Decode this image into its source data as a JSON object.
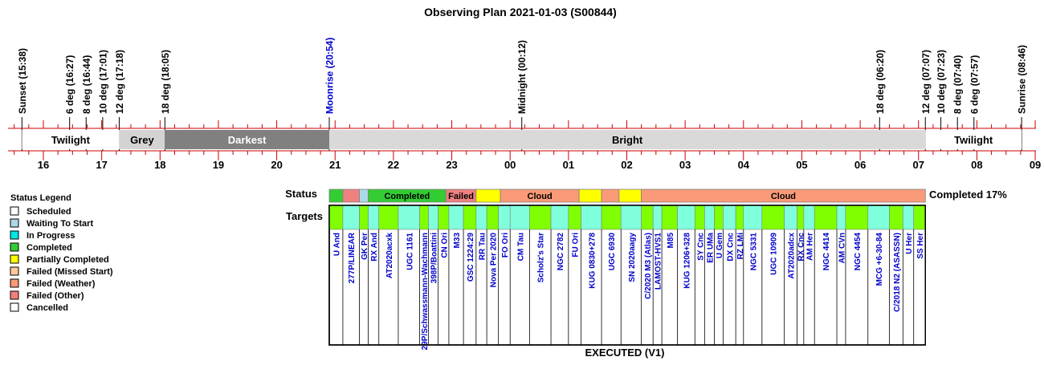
{
  "title": "Observing Plan 2021-01-03 (S00844)",
  "colors": {
    "twilight": "#ffffff",
    "grey": "#d3d3d3",
    "darkest": "#808080",
    "bright": "#d9d9d9",
    "axis": "#cc0000",
    "scheduled": "#ffffff",
    "waiting": "#add8e6",
    "in_progress": "#00e5e5",
    "completed": "#33cc33",
    "partial": "#ffff00",
    "failed_missed": "#ffcc99",
    "failed_weather": "#fa9a78",
    "failed_other": "#f08080",
    "cancelled": "#ffffff",
    "target_green": "#80ff00",
    "target_cyan": "#80ffdd",
    "label_blue": "#0000cc"
  },
  "legend": {
    "title": "Status Legend",
    "items": [
      {
        "label": "Scheduled",
        "color": "#ffffff"
      },
      {
        "label": "Waiting To Start",
        "color": "#add8e6"
      },
      {
        "label": "In Progress",
        "color": "#00e5e5"
      },
      {
        "label": "Completed",
        "color": "#33cc33"
      },
      {
        "label": "Partially Completed",
        "color": "#ffff00"
      },
      {
        "label": "Failed (Missed Start)",
        "color": "#ffcc99"
      },
      {
        "label": "Failed (Weather)",
        "color": "#fa9a78"
      },
      {
        "label": "Failed (Other)",
        "color": "#f08080"
      },
      {
        "label": "Cancelled",
        "color": "#ffffff"
      }
    ]
  },
  "chart_data": {
    "type": "timeline",
    "title": "Observing Plan 2021-01-03 (S00844)",
    "x_axis": {
      "unit": "hour (clock time)",
      "range": [
        15.3,
        33.0
      ],
      "tick_labels": [
        "16",
        "17",
        "18",
        "19",
        "20",
        "21",
        "22",
        "23",
        "00",
        "01",
        "02",
        "03",
        "04",
        "05",
        "06",
        "07",
        "08",
        "09"
      ],
      "tick_values": [
        16,
        17,
        18,
        19,
        20,
        21,
        22,
        23,
        24,
        25,
        26,
        27,
        28,
        29,
        30,
        31,
        32,
        33
      ]
    },
    "events": [
      {
        "label": "Sunset (15:38)",
        "t": 15.633,
        "color": "#000000"
      },
      {
        "label": "6 deg (16:27)",
        "t": 16.45,
        "color": "#000000"
      },
      {
        "label": "8 deg (16:44)",
        "t": 16.733,
        "color": "#000000"
      },
      {
        "label": "10 deg (17:01)",
        "t": 17.017,
        "color": "#000000"
      },
      {
        "label": "12 deg (17:18)",
        "t": 17.3,
        "color": "#000000"
      },
      {
        "label": "18 deg (18:05)",
        "t": 18.083,
        "color": "#000000"
      },
      {
        "label": "Moonrise (20:54)",
        "t": 20.9,
        "color": "#0000cc"
      },
      {
        "label": "Midnight (00:12)",
        "t": 24.2,
        "color": "#000000"
      },
      {
        "label": "18 deg (06:20)",
        "t": 30.333,
        "color": "#000000"
      },
      {
        "label": "12 deg (07:07)",
        "t": 31.117,
        "color": "#000000"
      },
      {
        "label": "10 deg (07:23)",
        "t": 31.383,
        "color": "#000000"
      },
      {
        "label": "8 deg (07:40)",
        "t": 31.667,
        "color": "#000000"
      },
      {
        "label": "6 deg (07:57)",
        "t": 31.95,
        "color": "#000000"
      },
      {
        "label": "Sunrise (08:46)",
        "t": 32.767,
        "color": "#000000"
      }
    ],
    "sky_periods": [
      {
        "label": "Twilight",
        "start": 15.633,
        "end": 17.3,
        "kind": "twilight"
      },
      {
        "label": "Grey",
        "start": 17.3,
        "end": 18.083,
        "kind": "grey"
      },
      {
        "label": "Darkest",
        "start": 18.083,
        "end": 20.9,
        "kind": "darkest"
      },
      {
        "label": "Bright",
        "start": 20.9,
        "end": 31.117,
        "kind": "bright"
      },
      {
        "label": "Twilight",
        "start": 31.117,
        "end": 32.767,
        "kind": "twilight"
      }
    ],
    "status_row": {
      "label": "Status",
      "segments": [
        {
          "start": 20.9,
          "end": 21.133,
          "status": "completed",
          "label": ""
        },
        {
          "start": 21.133,
          "end": 21.417,
          "status": "failed_other",
          "label": ""
        },
        {
          "start": 21.417,
          "end": 21.567,
          "status": "waiting",
          "label": ""
        },
        {
          "start": 21.567,
          "end": 22.9,
          "status": "completed",
          "label": "Completed"
        },
        {
          "start": 22.9,
          "end": 23.417,
          "status": "failed_other",
          "label": "Failed"
        },
        {
          "start": 23.417,
          "end": 23.833,
          "status": "partial",
          "label": ""
        },
        {
          "start": 23.833,
          "end": 25.183,
          "status": "failed_weather",
          "label": "Cloud"
        },
        {
          "start": 25.183,
          "end": 25.567,
          "status": "partial",
          "label": ""
        },
        {
          "start": 25.567,
          "end": 25.867,
          "status": "failed_weather",
          "label": ""
        },
        {
          "start": 25.867,
          "end": 26.25,
          "status": "partial",
          "label": ""
        },
        {
          "start": 26.25,
          "end": 31.117,
          "status": "failed_weather",
          "label": "Cloud"
        }
      ],
      "summary": "Completed 17%"
    },
    "targets_row": {
      "label": "Targets",
      "items": [
        {
          "name": "U And",
          "start": 20.9,
          "end": 21.133,
          "color": "#80ff00"
        },
        {
          "name": "277P/LINEAR",
          "start": 21.133,
          "end": 21.417,
          "color": "#80ffdd"
        },
        {
          "name": "GK Per",
          "start": 21.417,
          "end": 21.567,
          "color": "#80ff00"
        },
        {
          "name": "RX And",
          "start": 21.567,
          "end": 21.75,
          "color": "#80ffdd"
        },
        {
          "name": "AT2020acxk",
          "start": 21.75,
          "end": 22.083,
          "color": "#80ff00"
        },
        {
          "name": "UGC 1161",
          "start": 22.083,
          "end": 22.45,
          "color": "#80ffdd"
        },
        {
          "name": "29P/Schwassmann-Wachmann",
          "start": 22.45,
          "end": 22.6,
          "color": "#80ff00"
        },
        {
          "name": "398P/Boattini",
          "start": 22.6,
          "end": 22.767,
          "color": "#80ffdd"
        },
        {
          "name": "CN Ori",
          "start": 22.767,
          "end": 22.95,
          "color": "#80ff00"
        },
        {
          "name": "M33",
          "start": 22.95,
          "end": 23.2,
          "color": "#80ffdd"
        },
        {
          "name": "GSC 1224:29",
          "start": 23.2,
          "end": 23.417,
          "color": "#80ff00"
        },
        {
          "name": "RR Tau",
          "start": 23.417,
          "end": 23.6,
          "color": "#80ffdd"
        },
        {
          "name": "Nova Per 2020",
          "start": 23.6,
          "end": 23.8,
          "color": "#80ff00"
        },
        {
          "name": "FO Ori",
          "start": 23.8,
          "end": 24.0,
          "color": "#80ffdd"
        },
        {
          "name": "CM Tau",
          "start": 24.0,
          "end": 24.333,
          "color": "#80ffdd"
        },
        {
          "name": "Scholz's Star",
          "start": 24.333,
          "end": 24.7,
          "color": "#80ff00"
        },
        {
          "name": "NGC 2782",
          "start": 24.7,
          "end": 25.0,
          "color": "#80ffdd"
        },
        {
          "name": "FU Ori",
          "start": 25.0,
          "end": 25.217,
          "color": "#80ff00"
        },
        {
          "name": "KUG 0830+278",
          "start": 25.217,
          "end": 25.567,
          "color": "#80ffdd"
        },
        {
          "name": "UGC 6930",
          "start": 25.567,
          "end": 25.9,
          "color": "#80ff00"
        },
        {
          "name": "SN 2020aagy",
          "start": 25.9,
          "end": 26.25,
          "color": "#80ffdd"
        },
        {
          "name": "C/2020 M3 (Atlas)",
          "start": 26.25,
          "end": 26.45,
          "color": "#80ff00"
        },
        {
          "name": "LAMOST-HVS1",
          "start": 26.45,
          "end": 26.6,
          "color": "#80ffdd"
        },
        {
          "name": "M85",
          "start": 26.6,
          "end": 26.867,
          "color": "#80ff00"
        },
        {
          "name": "KUG 1206+328",
          "start": 26.867,
          "end": 27.167,
          "color": "#80ffdd"
        },
        {
          "name": "SY Cnc",
          "start": 27.167,
          "end": 27.333,
          "color": "#80ff00"
        },
        {
          "name": "ER UMa",
          "start": 27.333,
          "end": 27.5,
          "color": "#80ffdd"
        },
        {
          "name": "U Gem",
          "start": 27.5,
          "end": 27.65,
          "color": "#80ff00"
        },
        {
          "name": "DX Cnc",
          "start": 27.65,
          "end": 27.867,
          "color": "#80ffdd"
        },
        {
          "name": "RZ LMi",
          "start": 27.867,
          "end": 28.0,
          "color": "#80ff00"
        },
        {
          "name": "NGC 5331",
          "start": 28.0,
          "end": 28.317,
          "color": "#80ffdd"
        },
        {
          "name": "UGC 10909",
          "start": 28.317,
          "end": 28.7,
          "color": "#80ff00"
        },
        {
          "name": "AT2020adcx",
          "start": 28.7,
          "end": 28.917,
          "color": "#80ffdd"
        },
        {
          "name": "RX Cnc",
          "start": 28.917,
          "end": 29.033,
          "color": "#80ff00"
        },
        {
          "name": "AM Her",
          "start": 29.033,
          "end": 29.217,
          "color": "#80ffdd"
        },
        {
          "name": "NGC 4414",
          "start": 29.217,
          "end": 29.6,
          "color": "#80ff00"
        },
        {
          "name": "AM CVn",
          "start": 29.6,
          "end": 29.75,
          "color": "#80ffdd"
        },
        {
          "name": "NGC 4454",
          "start": 29.75,
          "end": 30.133,
          "color": "#80ff00"
        },
        {
          "name": "MCG +6-30-84",
          "start": 30.133,
          "end": 30.5,
          "color": "#80ffdd"
        },
        {
          "name": "C/2018 N2 (ASASSN)",
          "start": 30.5,
          "end": 30.733,
          "color": "#80ff00"
        },
        {
          "name": "U Her",
          "start": 30.733,
          "end": 30.917,
          "color": "#80ffdd"
        },
        {
          "name": "SS Her",
          "start": 30.917,
          "end": 31.117,
          "color": "#80ff00"
        }
      ]
    },
    "footer_label": "EXECUTED (V1)"
  }
}
